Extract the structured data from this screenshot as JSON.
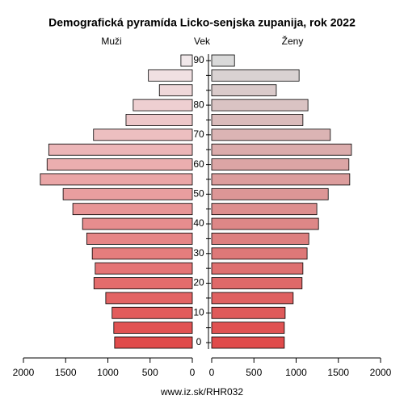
{
  "chart_data": {
    "type": "pyramid",
    "title": "Demografická pyramída Licko-senjska zupanija, rok 2022",
    "y_label": "Vek",
    "footer": "www.iz.sk/RHR032",
    "categories": [
      "0",
      null,
      "10",
      null,
      "20",
      null,
      "30",
      null,
      "40",
      null,
      "50",
      null,
      "60",
      null,
      "70",
      null,
      "80",
      null,
      null,
      "90"
    ],
    "series": [
      {
        "name": "Muži",
        "side": "left",
        "color_range": [
          "#e04b4b",
          "#f1e8ea"
        ],
        "values": [
          920,
          930,
          950,
          1025,
          1165,
          1150,
          1185,
          1250,
          1300,
          1415,
          1530,
          1800,
          1720,
          1700,
          1170,
          785,
          700,
          390,
          520,
          135
        ]
      },
      {
        "name": "Ženy",
        "side": "right",
        "color_range": [
          "#e04b4b",
          "#d9d9d9"
        ],
        "values": [
          860,
          860,
          870,
          965,
          1070,
          1080,
          1130,
          1150,
          1265,
          1245,
          1380,
          1635,
          1625,
          1655,
          1405,
          1080,
          1140,
          765,
          1035,
          270
        ]
      }
    ],
    "xlim": [
      0,
      2000
    ],
    "xticks": [
      0,
      500,
      1000,
      1500,
      2000
    ]
  }
}
